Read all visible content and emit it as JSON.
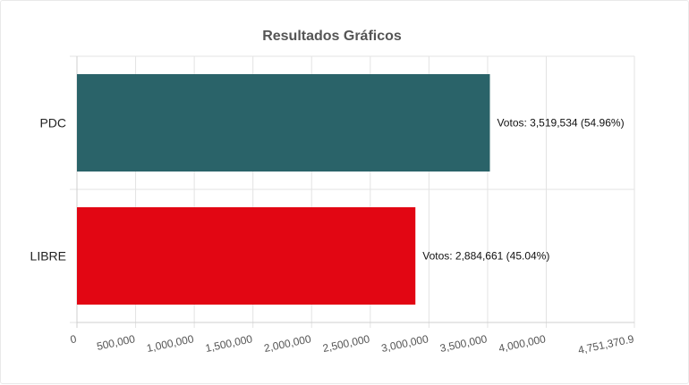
{
  "chart_data": {
    "type": "bar",
    "orientation": "horizontal",
    "title": "Resultados Gráficos",
    "xlabel": "",
    "ylabel": "",
    "categories": [
      "PDC",
      "LIBRE"
    ],
    "values": [
      3519534,
      2884661
    ],
    "percentages": [
      "54.96%",
      "45.04%"
    ],
    "data_labels": [
      "Votos: 3,519,534 (54.96%)",
      "Votos: 2,884,661 (45.04%)"
    ],
    "colors": [
      "#2a6369",
      "#e20613"
    ],
    "xlim": [
      0,
      4751370.9
    ],
    "x_ticks": [
      0,
      500000,
      1000000,
      1500000,
      2000000,
      2500000,
      3000000,
      3500000,
      4000000,
      4751370.9
    ],
    "x_tick_labels": [
      "0",
      "500,000",
      "1,000,000",
      "1,500,000",
      "2,000,000",
      "2,500,000",
      "3,000,000",
      "3,500,000",
      "4,000,000",
      "4,751,370.9"
    ],
    "grid": true,
    "legend": "none"
  }
}
